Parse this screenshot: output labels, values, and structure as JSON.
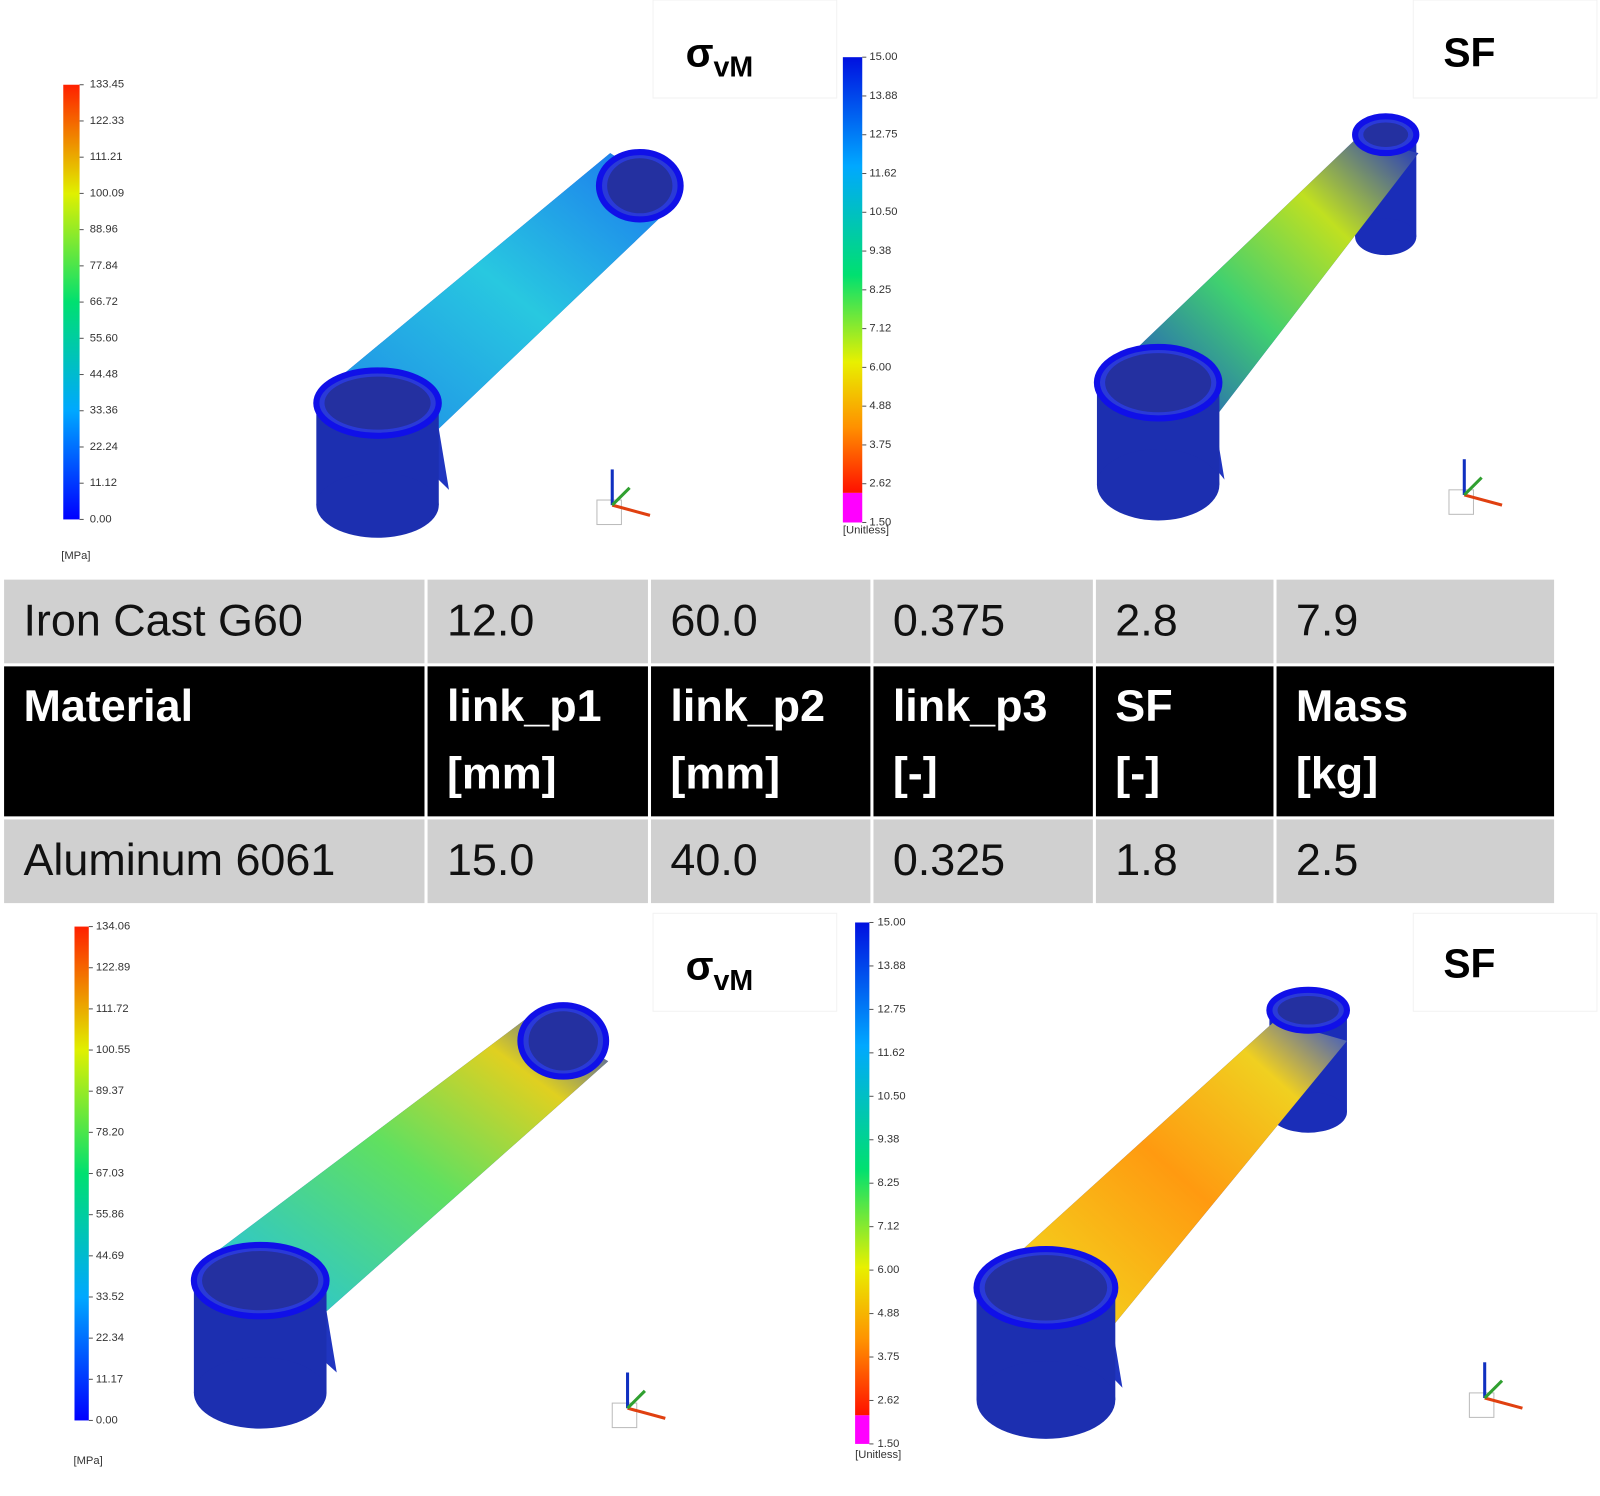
{
  "panels": [
    {
      "title": {
        "symbol": "σ",
        "subscript": "vM"
      },
      "scale": [
        "133.45",
        "122.33",
        "111.21",
        "100.09",
        "88.96",
        "77.84",
        "66.72",
        "55.60",
        "44.48",
        "33.36",
        "22.24",
        "11.12",
        "0.00"
      ],
      "unit": "[MPa]"
    },
    {
      "title": "SF",
      "scale": [
        "15.00",
        "13.88",
        "12.75",
        "11.62",
        "10.50",
        "9.38",
        "8.25",
        "7.12",
        "6.00",
        "4.88",
        "3.75",
        "2.62",
        "1.50"
      ],
      "unit": "[Unitless]"
    },
    {
      "title": {
        "symbol": "σ",
        "subscript": "vM"
      },
      "scale": [
        "134.06",
        "122.89",
        "111.72",
        "100.55",
        "89.37",
        "78.20",
        "67.03",
        "55.86",
        "44.69",
        "33.52",
        "22.34",
        "11.17",
        "0.00"
      ],
      "unit": "[MPa]"
    },
    {
      "title": "SF",
      "scale": [
        "15.00",
        "13.88",
        "12.75",
        "11.62",
        "10.50",
        "9.38",
        "8.25",
        "7.12",
        "6.00",
        "4.88",
        "3.75",
        "2.62",
        "1.50"
      ],
      "unit": "[Unitless]"
    }
  ],
  "table": {
    "rows": [
      [
        "Iron Cast G60",
        "12.0",
        "60.0",
        "0.375",
        "2.8",
        "7.9"
      ],
      [
        [
          "Material"
        ],
        [
          "link_p1",
          "[mm]"
        ],
        [
          "link_p2",
          "[mm]"
        ],
        [
          "link_p3",
          "[-]"
        ],
        [
          "SF",
          "[-]"
        ],
        [
          "Mass",
          " [kg]"
        ]
      ],
      [
        "Aluminum 6061",
        "15.0",
        "40.0",
        "0.325",
        "1.8",
        "2.5"
      ]
    ]
  }
}
